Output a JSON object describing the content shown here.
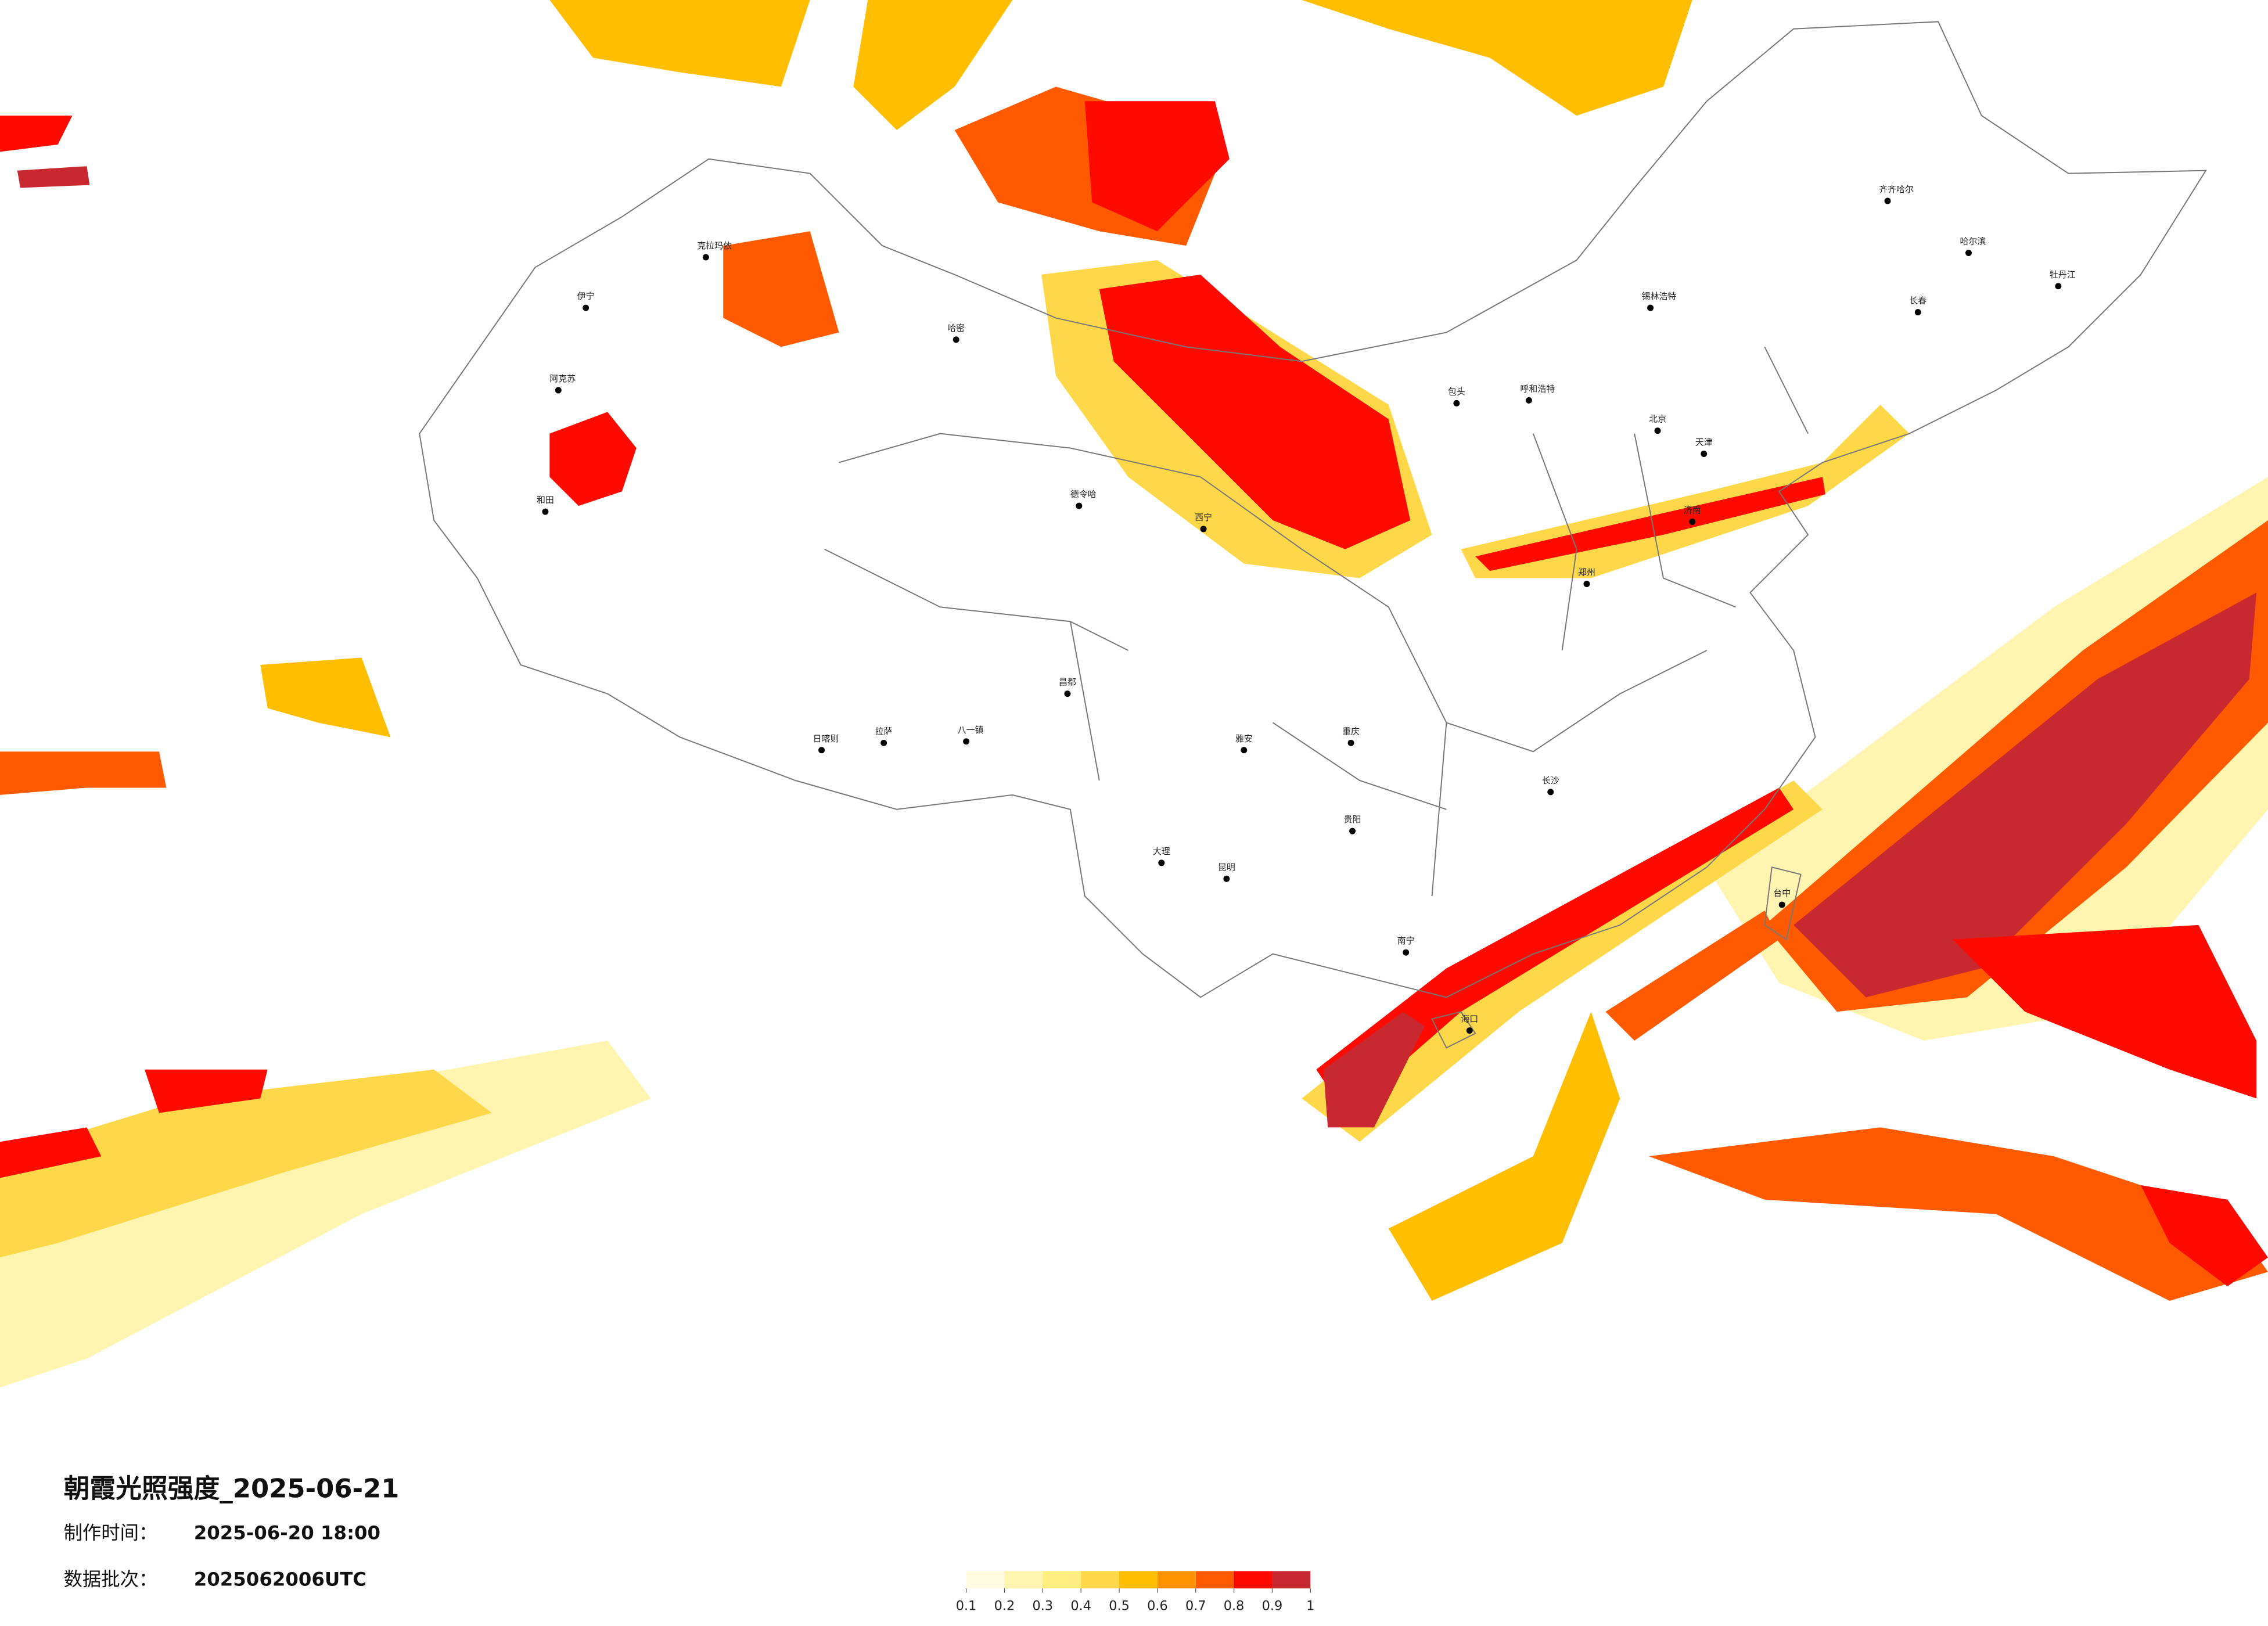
{
  "header": {
    "title": "朝霞光照强度_2025-06-21",
    "made_label": "制作时间：",
    "made_time": "2025-06-20 18:00",
    "batch_label": "数据批次：",
    "batch": "2025062006UTC"
  },
  "colorbar": {
    "ticks": [
      0.1,
      0.2,
      0.3,
      0.4,
      0.5,
      0.6,
      0.7,
      0.8,
      0.9,
      1
    ],
    "colors": [
      "#fffbe0",
      "#fff5b0",
      "#ffee80",
      "#ffd84a",
      "#ffbf00",
      "#ff9200",
      "#ff5a00",
      "#ff0a00",
      "#c8282f"
    ]
  },
  "cities": [
    "克拉玛依",
    "伊宁",
    "阿克苏",
    "和田",
    "哈密",
    "德令哈",
    "西宁",
    "拉萨",
    "日喀则",
    "八一镇",
    "昌都",
    "雅安",
    "重庆",
    "贵阳",
    "昆明",
    "大理",
    "南宁",
    "海口",
    "长沙",
    "郑州",
    "济南",
    "北京",
    "天津",
    "呼和浩特",
    "包头",
    "锡林浩特",
    "齐齐哈尔",
    "哈尔滨",
    "长春",
    "牡丹江",
    "台中"
  ]
}
